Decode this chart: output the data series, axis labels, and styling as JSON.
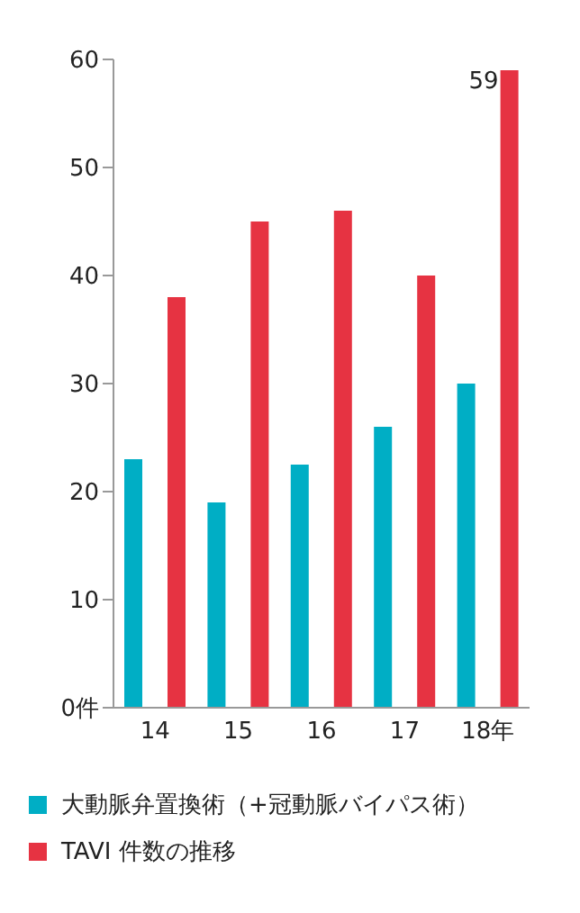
{
  "chart_data": {
    "type": "bar",
    "categories": [
      "14",
      "15",
      "16",
      "17",
      "18年"
    ],
    "series": [
      {
        "name": "大動脈弁置換術（+冠動脈バイパス術）",
        "color": "#00aec5",
        "values": [
          23,
          19,
          22.5,
          26,
          30
        ]
      },
      {
        "name": "TAVI 件数の推移",
        "color": "#e63342",
        "values": [
          38,
          45,
          46,
          40,
          59
        ],
        "value_labels": [
          null,
          null,
          null,
          null,
          "59"
        ]
      }
    ],
    "ylim": [
      0,
      60
    ],
    "yticks": [
      {
        "value": 0,
        "label": "0件"
      },
      10,
      20,
      30,
      40,
      50,
      60
    ],
    "legend": "bottom"
  }
}
